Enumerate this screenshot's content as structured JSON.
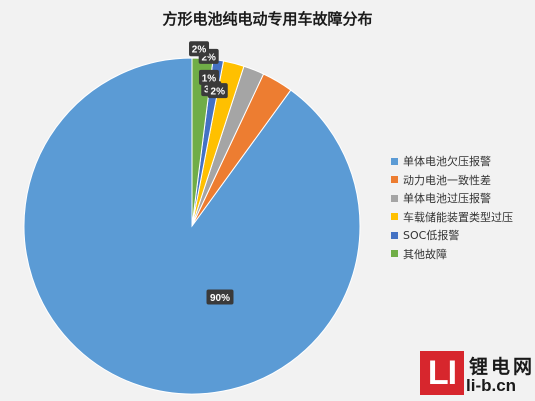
{
  "colors": {
    "background": "#f2f2f2",
    "label_bg": "#3a3a3a",
    "label_text": "#ffffff",
    "watermark_red": "#d7262d"
  },
  "chart_data": {
    "type": "pie",
    "title": "方形电池纯电动专用车故障分布",
    "legend_position": "right",
    "unit": "%",
    "slices": [
      {
        "label": "单体电池欠压报警",
        "value": 90,
        "display": "90%",
        "color": "#5b9bd5"
      },
      {
        "label": "动力电池一致性差",
        "value": 3,
        "display": "3%",
        "color": "#ed7d31"
      },
      {
        "label": "单体电池过压报警",
        "value": 2,
        "display": "2%",
        "color": "#a5a5a5"
      },
      {
        "label": "车载储能装置类型过压",
        "value": 2,
        "display": "2%",
        "color": "#ffc000"
      },
      {
        "label": "SOC低报警",
        "value": 1,
        "display": "1%",
        "color": "#4472c4"
      },
      {
        "label": "其他故障",
        "value": 2,
        "display": "2%",
        "color": "#70ad47"
      }
    ]
  },
  "watermark": {
    "logo_text": "LI",
    "name": "锂电网",
    "url": "li-b.cn"
  }
}
